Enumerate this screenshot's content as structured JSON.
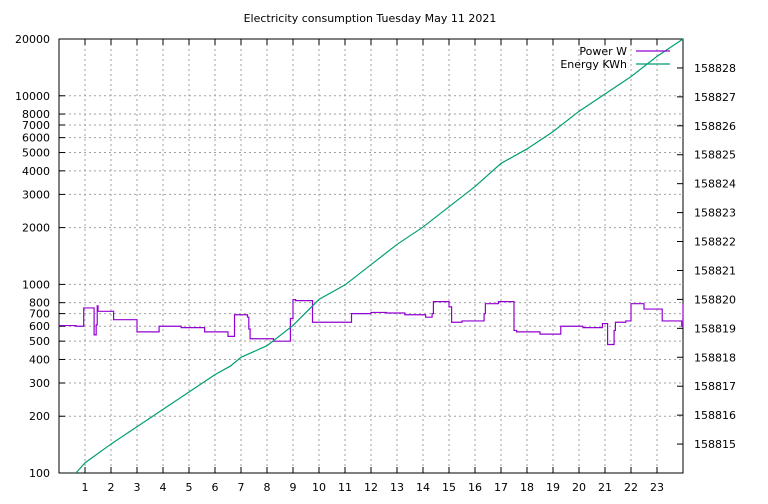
{
  "chart_data": {
    "type": "line",
    "title": "Electricity consumption Tuesday May 11 2021",
    "xlabel": "",
    "ylabel": "",
    "xlim": [
      0,
      24
    ],
    "x_ticks": [
      1,
      2,
      3,
      4,
      5,
      6,
      7,
      8,
      9,
      10,
      11,
      12,
      13,
      14,
      15,
      16,
      17,
      18,
      19,
      20,
      21,
      22,
      23
    ],
    "y_scale": "log",
    "ylim": [
      100,
      20000
    ],
    "y_ticks": [
      100,
      200,
      300,
      400,
      500,
      600,
      700,
      800,
      1000,
      2000,
      3000,
      4000,
      5000,
      6000,
      7000,
      8000,
      10000,
      20000
    ],
    "y2lim": [
      158814,
      158829
    ],
    "y2_ticks": [
      158815,
      158816,
      158817,
      158818,
      158819,
      158820,
      158821,
      158822,
      158823,
      158824,
      158825,
      158826,
      158827,
      158828
    ],
    "grid": true,
    "legend_position": "top-right",
    "colors": {
      "power": "#9400d3",
      "energy": "#009e73"
    },
    "series": [
      {
        "name": "Power W",
        "axis": "y",
        "style": "steps",
        "points": [
          [
            0,
            605
          ],
          [
            0.65,
            600
          ],
          [
            0.95,
            750
          ],
          [
            1.35,
            540
          ],
          [
            1.43,
            610
          ],
          [
            1.47,
            770
          ],
          [
            1.5,
            720
          ],
          [
            2.1,
            650
          ],
          [
            3.0,
            560
          ],
          [
            3.85,
            600
          ],
          [
            4.7,
            590
          ],
          [
            5.6,
            560
          ],
          [
            6.5,
            530
          ],
          [
            6.75,
            690
          ],
          [
            7.25,
            670
          ],
          [
            7.3,
            580
          ],
          [
            7.35,
            515
          ],
          [
            8.25,
            500
          ],
          [
            8.9,
            660
          ],
          [
            9.0,
            830
          ],
          [
            9.1,
            820
          ],
          [
            9.75,
            630
          ],
          [
            11.25,
            700
          ],
          [
            12.0,
            710
          ],
          [
            12.6,
            705
          ],
          [
            13.3,
            690
          ],
          [
            14.1,
            670
          ],
          [
            14.35,
            700
          ],
          [
            14.4,
            810
          ],
          [
            15.0,
            760
          ],
          [
            15.1,
            630
          ],
          [
            15.5,
            640
          ],
          [
            16.35,
            700
          ],
          [
            16.4,
            790
          ],
          [
            16.9,
            810
          ],
          [
            17.5,
            570
          ],
          [
            17.6,
            560
          ],
          [
            18.5,
            545
          ],
          [
            19.3,
            600
          ],
          [
            20.15,
            590
          ],
          [
            20.9,
            620
          ],
          [
            21.1,
            480
          ],
          [
            21.35,
            570
          ],
          [
            21.4,
            630
          ],
          [
            21.8,
            640
          ],
          [
            22.0,
            790
          ],
          [
            22.5,
            740
          ],
          [
            23.2,
            640
          ],
          [
            23.95,
            600
          ],
          [
            24,
            790
          ]
        ]
      },
      {
        "name": "Energy KWh",
        "axis": "y2",
        "style": "line",
        "points": [
          [
            0.65,
            158814
          ],
          [
            1,
            158814.35
          ],
          [
            2,
            158815
          ],
          [
            3,
            158815.6
          ],
          [
            4,
            158816.2
          ],
          [
            5,
            158816.8
          ],
          [
            6,
            158817.4
          ],
          [
            6.6,
            158817.7
          ],
          [
            7,
            158818
          ],
          [
            8,
            158818.4
          ],
          [
            9,
            158819.1
          ],
          [
            10,
            158820
          ],
          [
            11,
            158820.5
          ],
          [
            12,
            158821.2
          ],
          [
            13,
            158821.9
          ],
          [
            14,
            158822.5
          ],
          [
            15,
            158823.2
          ],
          [
            16,
            158823.9
          ],
          [
            17,
            158824.7
          ],
          [
            18,
            158825.2
          ],
          [
            19,
            158825.8
          ],
          [
            20,
            158826.5
          ],
          [
            21,
            158827.1
          ],
          [
            22,
            158827.7
          ],
          [
            23,
            158828.4
          ],
          [
            24,
            158829
          ]
        ]
      }
    ]
  }
}
